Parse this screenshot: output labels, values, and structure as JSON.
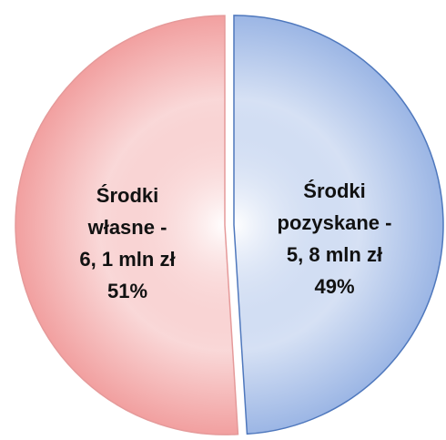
{
  "chart_data": {
    "type": "pie",
    "categories": [
      "Środki własne -",
      "Środki pozyskane -"
    ],
    "amount_labels": [
      "6, 1 mln zł",
      "5, 8 mln zł"
    ],
    "values": [
      51,
      49
    ],
    "value_labels": [
      "51%",
      "49%"
    ],
    "colors": [
      "#ef8f8f",
      "#8aa9e0"
    ],
    "edge_colors": [
      "#e59a9a",
      "#4f78bd"
    ]
  }
}
